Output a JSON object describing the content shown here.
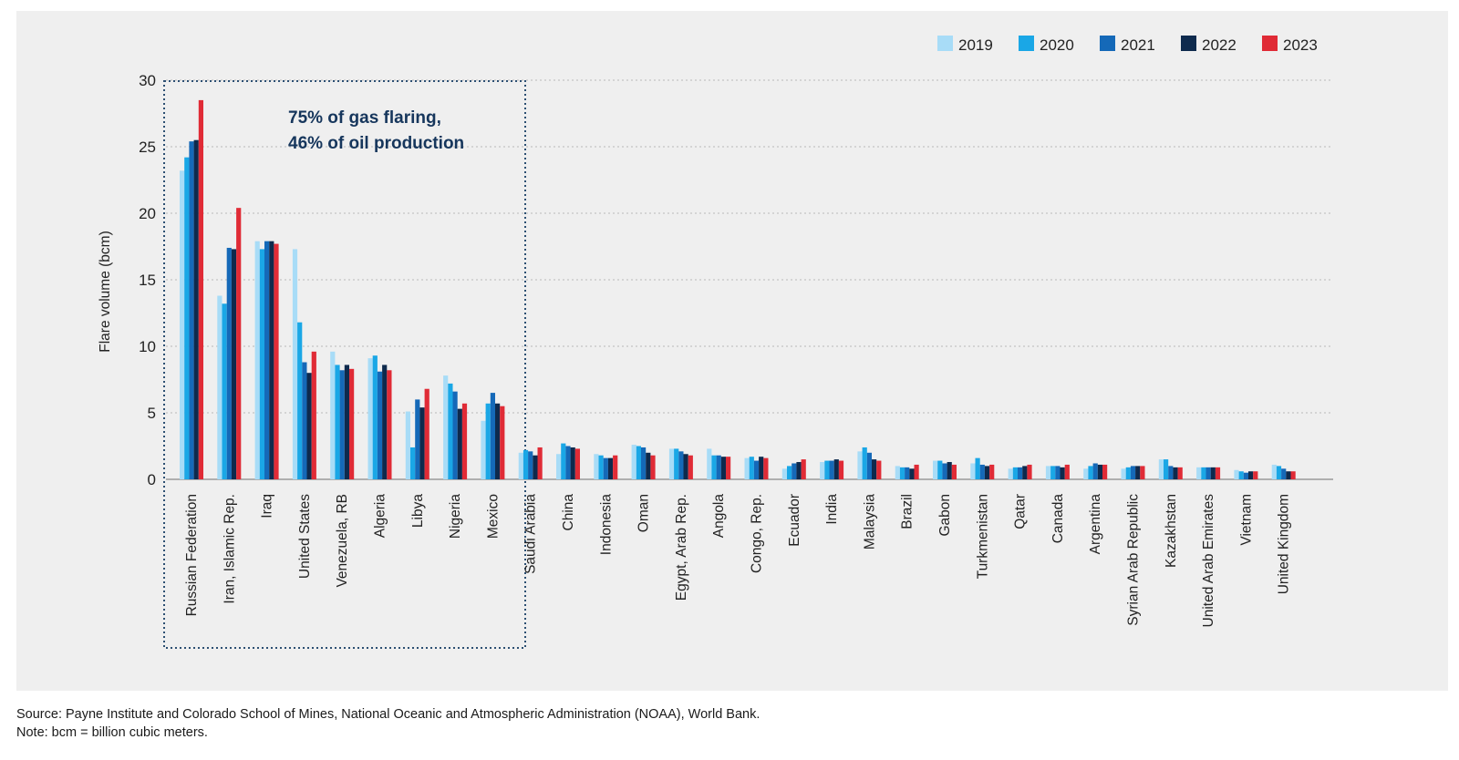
{
  "chart_data": {
    "type": "bar",
    "title": "",
    "ylabel": "Flare volume (bcm)",
    "xlabel": "",
    "ylim": [
      0,
      30
    ],
    "yticks": [
      0,
      5,
      10,
      15,
      20,
      25,
      30
    ],
    "grid": "horizontal dotted",
    "legend_position": "top-right",
    "annotation": {
      "lines": [
        "75% of gas flaring,",
        "46% of oil production"
      ],
      "highlight": "first 9 countries (dotted box)"
    },
    "categories": [
      "Russian Federation",
      "Iran, Islamic Rep.",
      "Iraq",
      "United States",
      "Venezuela, RB",
      "Algeria",
      "Libya",
      "Nigeria",
      "Mexico",
      "Saudi Arabia",
      "China",
      "Indonesia",
      "Oman",
      "Egypt, Arab Rep.",
      "Angola",
      "Congo, Rep.",
      "Ecuador",
      "India",
      "Malaysia",
      "Brazil",
      "Gabon",
      "Turkmenistan",
      "Qatar",
      "Canada",
      "Argentina",
      "Syrian Arab Republic",
      "Kazakhstan",
      "United Arab Emirates",
      "Vietnam",
      "United Kingdom"
    ],
    "series": [
      {
        "name": "2019",
        "color": "#a8dcf7",
        "values": [
          23.2,
          13.8,
          17.9,
          17.3,
          9.6,
          9.1,
          5.1,
          7.8,
          4.4,
          2.0,
          1.9,
          1.9,
          2.6,
          2.3,
          2.3,
          1.6,
          0.8,
          1.3,
          2.1,
          1.0,
          1.4,
          1.2,
          0.8,
          1.0,
          0.8,
          0.8,
          1.5,
          0.9,
          0.7,
          1.1
        ]
      },
      {
        "name": "2020",
        "color": "#1aa7e6",
        "values": [
          24.2,
          13.2,
          17.3,
          11.8,
          8.6,
          9.3,
          2.4,
          7.2,
          5.7,
          2.2,
          2.7,
          1.8,
          2.5,
          2.3,
          1.8,
          1.7,
          1.0,
          1.4,
          2.4,
          0.9,
          1.4,
          1.6,
          0.9,
          1.0,
          1.0,
          0.9,
          1.5,
          0.9,
          0.6,
          1.0
        ]
      },
      {
        "name": "2021",
        "color": "#1569b8",
        "values": [
          25.4,
          17.4,
          17.9,
          8.8,
          8.2,
          8.1,
          6.0,
          6.6,
          6.5,
          2.1,
          2.5,
          1.6,
          2.4,
          2.1,
          1.8,
          1.4,
          1.2,
          1.4,
          2.0,
          0.9,
          1.2,
          1.1,
          0.9,
          1.0,
          1.2,
          1.0,
          1.0,
          0.9,
          0.5,
          0.8
        ]
      },
      {
        "name": "2022",
        "color": "#0e2a4d",
        "values": [
          25.5,
          17.3,
          17.9,
          8.0,
          8.6,
          8.6,
          5.4,
          5.3,
          5.7,
          1.8,
          2.4,
          1.6,
          2.0,
          1.9,
          1.7,
          1.7,
          1.3,
          1.5,
          1.5,
          0.8,
          1.3,
          1.0,
          1.0,
          0.9,
          1.1,
          1.0,
          0.9,
          0.9,
          0.6,
          0.6
        ]
      },
      {
        "name": "2023",
        "color": "#e02b36",
        "values": [
          28.5,
          20.4,
          17.7,
          9.6,
          8.3,
          8.2,
          6.8,
          5.7,
          5.5,
          2.4,
          2.3,
          1.8,
          1.8,
          1.8,
          1.7,
          1.6,
          1.5,
          1.4,
          1.4,
          1.1,
          1.1,
          1.1,
          1.1,
          1.1,
          1.1,
          1.0,
          0.9,
          0.9,
          0.6,
          0.6
        ]
      }
    ]
  },
  "footer": {
    "source": "Source: Payne Institute and Colorado School of Mines, National Oceanic and Atmospheric Administration (NOAA), World Bank.",
    "note": "Note: bcm = billion cubic meters."
  }
}
